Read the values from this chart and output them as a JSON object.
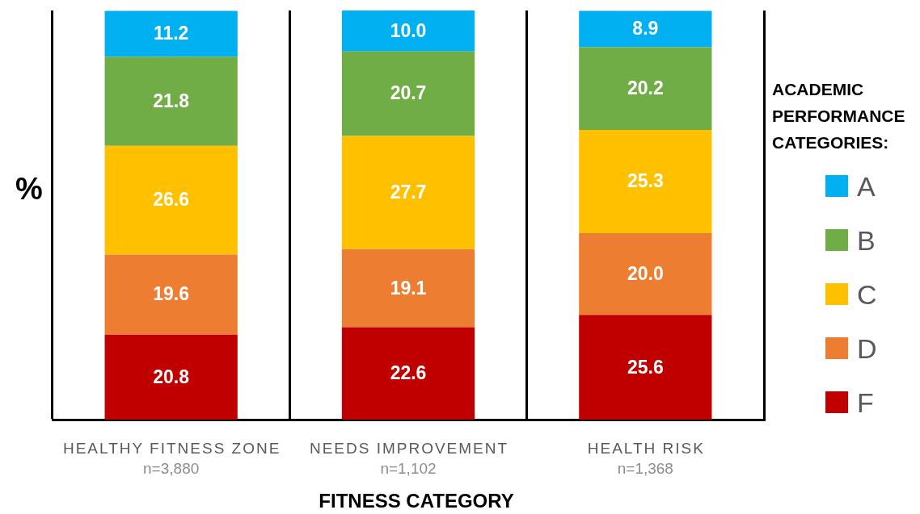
{
  "chart_data": {
    "type": "bar",
    "xlabel": "FITNESS CATEGORY",
    "ylabel": "%",
    "legend_title": "ACADEMIC PERFORMANCE CATEGORIES:",
    "categories": [
      "HEALTHY FITNESS ZONE\nn=3,880",
      "NEEDS IMPROVEMENT\nn=1,102",
      "HEALTH RISK\nn=1,368"
    ],
    "stacked": true,
    "grid": "x",
    "legend": "right",
    "series": [
      {
        "name": "F",
        "color": "#c00000",
        "values": [
          20.8,
          22.6,
          25.6
        ],
        "value_labels": [
          "20.8",
          "22.6",
          "25.6"
        ]
      },
      {
        "name": "D",
        "color": "#ed7d31",
        "values": [
          19.6,
          19.1,
          20.0
        ],
        "value_labels": [
          "19.6",
          "19.1",
          "20.0"
        ]
      },
      {
        "name": "C",
        "color": "#ffc000",
        "values": [
          26.6,
          27.7,
          25.3
        ],
        "value_labels": [
          "26.6",
          "27.7",
          "25.3"
        ]
      },
      {
        "name": "B",
        "color": "#70ad47",
        "values": [
          21.8,
          20.7,
          20.2
        ],
        "value_labels": [
          "21.8",
          "20.7",
          "20.2"
        ]
      },
      {
        "name": "A",
        "color": "#00b0f0",
        "values": [
          11.2,
          10.0,
          8.9
        ],
        "value_labels": [
          "11.2",
          "10.0",
          "8.9"
        ]
      }
    ]
  }
}
